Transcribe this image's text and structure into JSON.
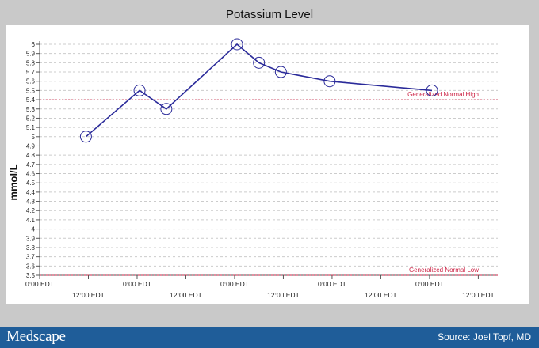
{
  "chart_data": {
    "type": "line",
    "title": "Potassium Level",
    "ylabel": "mmol/L",
    "xlabel": "",
    "ylim": [
      3.5,
      6.0
    ],
    "ytick_step": 0.1,
    "x_tick_labels_upper": [
      "0:00 EDT",
      "0:00 EDT",
      "0:00 EDT",
      "0:00 EDT",
      "0:00 EDT"
    ],
    "x_tick_labels_lower": [
      "12:00 EDT",
      "12:00 EDT",
      "12:00 EDT",
      "12:00 EDT",
      "12:00 EDT"
    ],
    "x_ticks_half_days": [
      0,
      1,
      2,
      3,
      4,
      5,
      6,
      7,
      8,
      9
    ],
    "series": [
      {
        "color": "#2b2b9a",
        "points": [
          {
            "x": 0.95,
            "y": 5.0
          },
          {
            "x": 2.05,
            "y": 5.5
          },
          {
            "x": 2.6,
            "y": 5.3
          },
          {
            "x": 4.05,
            "y": 6.0
          },
          {
            "x": 4.5,
            "y": 5.8
          },
          {
            "x": 4.95,
            "y": 5.7
          },
          {
            "x": 5.95,
            "y": 5.6
          },
          {
            "x": 8.05,
            "y": 5.5
          }
        ]
      }
    ],
    "reference_lines": [
      {
        "label": "Generalized Normal High",
        "y": 5.4,
        "color": "#cc2244"
      },
      {
        "label": "Generalized Normal Low",
        "y": 3.5,
        "color": "#cc2244"
      }
    ],
    "grid": true
  },
  "footer": {
    "brand": "Medscape",
    "source": "Source: Joel Topf, MD",
    "background": "#1f5d99"
  }
}
